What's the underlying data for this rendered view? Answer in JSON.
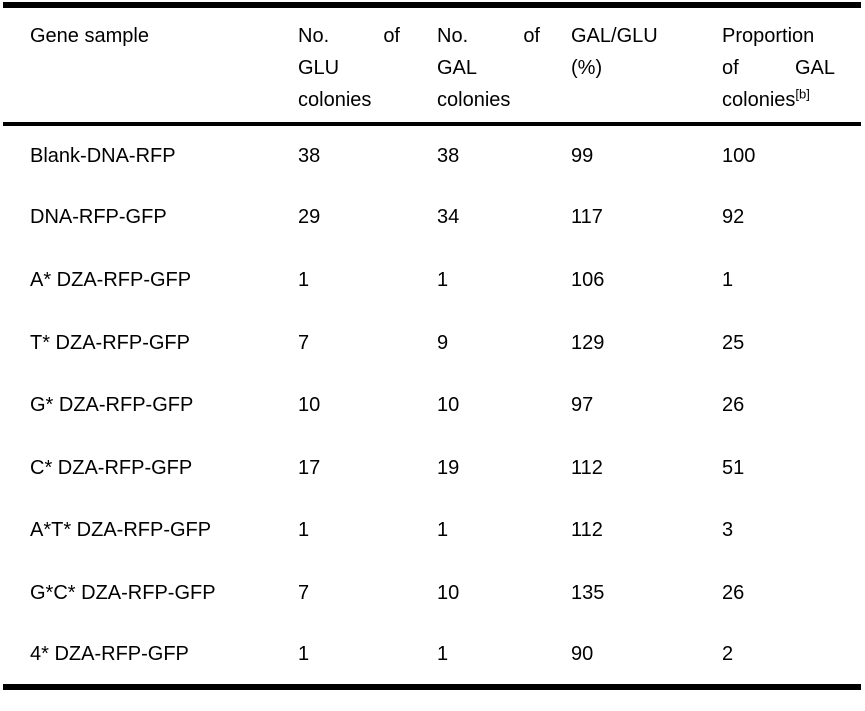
{
  "page": {
    "background_color": "#ffffff",
    "text_color": "#000000",
    "border_color": "#000000"
  },
  "table": {
    "header": {
      "columns": [
        {
          "id": "gene-sample",
          "lines": [
            [
              "Gene",
              "sample"
            ]
          ],
          "justify": false
        },
        {
          "id": "glu-colonies",
          "lines": [
            [
              "No.",
              "of"
            ],
            [
              "GLU"
            ],
            [
              "colonies"
            ]
          ],
          "justify": true
        },
        {
          "id": "gal-colonies",
          "lines": [
            [
              "No.",
              "of"
            ],
            [
              "GAL"
            ],
            [
              "colonies"
            ]
          ],
          "justify": true
        },
        {
          "id": "gal-glu-percent",
          "lines": [
            [
              "GAL/GLU"
            ],
            [
              "(%)"
            ]
          ],
          "justify": true
        },
        {
          "id": "proportion-gal",
          "lines": [
            [
              "Proportion"
            ],
            [
              "of",
              "GAL"
            ],
            [
              "colonies^[b]"
            ]
          ],
          "justify": true
        }
      ]
    },
    "rows": [
      [
        "Blank-DNA-RFP",
        "38",
        "38",
        "99",
        "100"
      ],
      [
        "DNA-RFP-GFP",
        "29",
        "34",
        "117",
        "92"
      ],
      [
        "A* DZA-RFP-GFP",
        "1",
        "1",
        "106",
        "1"
      ],
      [
        "T* DZA-RFP-GFP",
        "7",
        "9",
        "129",
        "25"
      ],
      [
        "G* DZA-RFP-GFP",
        "10",
        "10",
        "97",
        "26"
      ],
      [
        "C* DZA-RFP-GFP",
        "17",
        "19",
        "112",
        "51"
      ],
      [
        "A*T* DZA-RFP-GFP",
        "1",
        "1",
        "112",
        "3"
      ],
      [
        "G*C* DZA-RFP-GFP",
        "7",
        "10",
        "135",
        "26"
      ],
      [
        "4* DZA-RFP-GFP",
        "1",
        "1",
        "90",
        "2"
      ]
    ]
  }
}
